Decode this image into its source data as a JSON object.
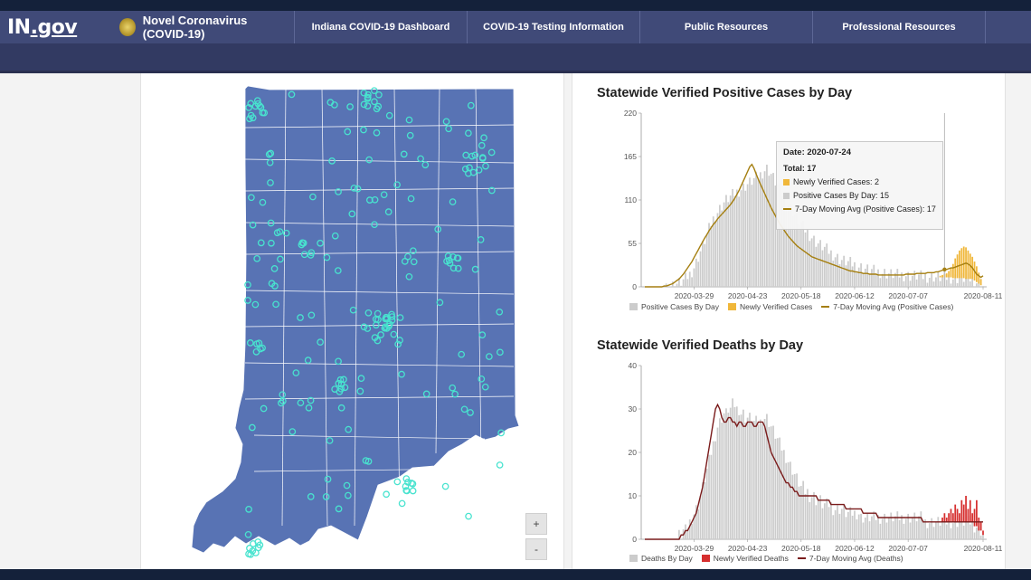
{
  "header": {
    "logo_main": "IN",
    "logo_suffix": ".gov",
    "site_title": "Novel Coronavirus (COVID-19)",
    "nav": [
      "Indiana COVID-19 Dashboard",
      "COVID-19 Testing Information",
      "Public Resources",
      "Professional Resources"
    ]
  },
  "map": {
    "zoom_in": "+",
    "zoom_out": "-",
    "fill_color": "#5873b4",
    "marker_color": "#48e3cf"
  },
  "charts": {
    "cases": {
      "title": "Statewide Verified Positive Cases by Day",
      "tooltip": {
        "date": "Date: 2020-07-24",
        "total": "Total: 17",
        "new": "Newly Verified Cases: 2",
        "positive": "Positive Cases By Day: 15",
        "avg": "7-Day Moving Avg (Positive Cases): 17"
      },
      "legend": [
        "Positive Cases By Day",
        "Newly Verified Cases",
        "7-Day Moving Avg (Positive Cases)"
      ]
    },
    "deaths": {
      "title": "Statewide Verified Deaths by Day",
      "legend": [
        "Deaths By Day",
        "Newly Verified Deaths",
        "7-Day Moving Avg (Deaths)"
      ]
    }
  },
  "chart_data": [
    {
      "type": "bar",
      "title": "Statewide Verified Positive Cases by Day",
      "x_ticks": [
        "2020-03-29",
        "2020-04-23",
        "2020-05-18",
        "2020-06-12",
        "2020-07-07",
        "2020-08-11"
      ],
      "y_ticks": [
        "0",
        "55",
        "110",
        "165",
        "220"
      ],
      "ylim": [
        0,
        220
      ],
      "start_date": "2020-03-06",
      "end_date": "2020-08-14",
      "series": [
        {
          "name": "Positive Cases By Day",
          "color": "#cccccc",
          "values": [
            0,
            0,
            0,
            0,
            0,
            0,
            0,
            0,
            0,
            0,
            1,
            1,
            2,
            2,
            3,
            4,
            5,
            6,
            8,
            10,
            13,
            16,
            20,
            25,
            31,
            38,
            45,
            52,
            59,
            66,
            73,
            80,
            86,
            91,
            95,
            99,
            103,
            107,
            110,
            112,
            114,
            116,
            118,
            120,
            122,
            124,
            126,
            128,
            130,
            132,
            134,
            136,
            138,
            140,
            142,
            145,
            148,
            150,
            147,
            143,
            138,
            133,
            128,
            123,
            118,
            113,
            108,
            104,
            100,
            96,
            92,
            88,
            84,
            80,
            76,
            72,
            69,
            66,
            63,
            60,
            57,
            55,
            53,
            51,
            49,
            47,
            45,
            43,
            41,
            39,
            37,
            35,
            34,
            33,
            32,
            31,
            30,
            29,
            28,
            27,
            26,
            25,
            24,
            23,
            22,
            21,
            21,
            20,
            20,
            19,
            19,
            18,
            18,
            17,
            17,
            16,
            16,
            16,
            15,
            15,
            15,
            15,
            15,
            14,
            14,
            14,
            14,
            14,
            14,
            13,
            13,
            13,
            13,
            13,
            13,
            13,
            12,
            12,
            12,
            12,
            12,
            12,
            12,
            12,
            11,
            11,
            11,
            11,
            11,
            11,
            10,
            10,
            10,
            10,
            8,
            6,
            4,
            2,
            1
          ]
        },
        {
          "name": "Newly Verified Cases",
          "color": "#f0b73a",
          "values": [
            0,
            0,
            0,
            0,
            0,
            0,
            0,
            0,
            0,
            0,
            0,
            0,
            0,
            0,
            0,
            0,
            0,
            0,
            0,
            0,
            0,
            0,
            0,
            0,
            0,
            0,
            0,
            0,
            0,
            0,
            0,
            0,
            0,
            0,
            0,
            0,
            0,
            0,
            0,
            0,
            0,
            0,
            0,
            0,
            0,
            0,
            0,
            0,
            0,
            0,
            0,
            0,
            0,
            0,
            0,
            0,
            0,
            0,
            0,
            0,
            0,
            0,
            0,
            0,
            0,
            0,
            0,
            0,
            0,
            0,
            0,
            0,
            0,
            0,
            0,
            0,
            0,
            0,
            0,
            0,
            0,
            0,
            0,
            0,
            0,
            0,
            0,
            0,
            0,
            0,
            0,
            0,
            0,
            0,
            0,
            0,
            0,
            0,
            0,
            0,
            0,
            0,
            0,
            0,
            0,
            0,
            0,
            0,
            0,
            0,
            0,
            0,
            0,
            0,
            0,
            0,
            0,
            0,
            0,
            0,
            0,
            0,
            0,
            0,
            0,
            0,
            0,
            0,
            0,
            0,
            0,
            0,
            0,
            0,
            0,
            0,
            0,
            0,
            2,
            3,
            4,
            5,
            8,
            12,
            18,
            25,
            30,
            35,
            38,
            40,
            40,
            36,
            32,
            28,
            24,
            20,
            14,
            8
          ]
        },
        {
          "name": "7-Day Moving Avg (Positive Cases)",
          "color": "#a57f10",
          "values": [
            0,
            0,
            0,
            0,
            0,
            0,
            0,
            0,
            0,
            1,
            1,
            2,
            3,
            4,
            6,
            8,
            10,
            13,
            16,
            20,
            24,
            28,
            32,
            37,
            42,
            47,
            52,
            57,
            62,
            66,
            71,
            75,
            79,
            82,
            86,
            89,
            92,
            95,
            98,
            101,
            104,
            108,
            112,
            117,
            122,
            128,
            134,
            140,
            146,
            152,
            155,
            150,
            143,
            136,
            130,
            124,
            118,
            112,
            106,
            100,
            95,
            90,
            85,
            80,
            76,
            72,
            68,
            64,
            61,
            58,
            55,
            52,
            50,
            48,
            46,
            44,
            42,
            40,
            38,
            37,
            36,
            35,
            34,
            33,
            32,
            31,
            30,
            29,
            28,
            27,
            26,
            25,
            24,
            23,
            22,
            21,
            20,
            20,
            19,
            19,
            18,
            18,
            17,
            17,
            17,
            16,
            16,
            16,
            16,
            15,
            15,
            15,
            15,
            15,
            15,
            15,
            15,
            15,
            15,
            15,
            15,
            15,
            16,
            16,
            16,
            16,
            16,
            17,
            17,
            17,
            17,
            17,
            18,
            18,
            18,
            18,
            19,
            19,
            20,
            21,
            22,
            22,
            23,
            24,
            24,
            25,
            26,
            27,
            28,
            29,
            30,
            29,
            27,
            24,
            20,
            16,
            14,
            12,
            14
          ]
        }
      ]
    },
    {
      "type": "bar",
      "title": "Statewide Verified Deaths by Day",
      "x_ticks": [
        "2020-03-29",
        "2020-04-23",
        "2020-05-18",
        "2020-06-12",
        "2020-07-07",
        "2020-08-11"
      ],
      "y_ticks": [
        "0",
        "10",
        "20",
        "30",
        "40"
      ],
      "ylim": [
        0,
        40
      ],
      "start_date": "2020-03-06",
      "end_date": "2020-08-14",
      "series": [
        {
          "name": "Deaths By Day",
          "color": "#cccccc",
          "values": [
            0,
            0,
            0,
            0,
            0,
            0,
            0,
            0,
            0,
            0,
            0,
            0,
            0,
            0,
            0,
            0,
            1,
            1,
            2,
            2,
            3,
            4,
            5,
            6,
            7,
            8,
            10,
            12,
            14,
            16,
            18,
            20,
            22,
            24,
            26,
            27,
            28,
            29,
            29,
            30,
            30,
            31,
            31,
            30,
            30,
            29,
            29,
            28,
            28,
            28,
            28,
            27,
            27,
            27,
            27,
            28,
            28,
            28,
            27,
            26,
            25,
            24,
            23,
            22,
            21,
            20,
            19,
            18,
            17,
            16,
            15,
            14,
            13,
            12,
            12,
            11,
            11,
            10,
            10,
            10,
            9,
            9,
            9,
            8,
            8,
            8,
            8,
            8,
            7,
            7,
            7,
            7,
            7,
            7,
            6,
            6,
            6,
            6,
            6,
            6,
            6,
            5,
            5,
            5,
            5,
            5,
            5,
            5,
            5,
            5,
            5,
            5,
            5,
            5,
            5,
            5,
            5,
            5,
            5,
            5,
            5,
            5,
            5,
            5,
            5,
            5,
            5,
            5,
            5,
            5,
            5,
            4,
            4,
            4,
            4,
            4,
            4,
            4,
            4,
            4,
            4,
            4,
            4,
            4,
            4,
            4,
            4,
            4,
            4,
            4,
            4,
            4,
            4,
            4,
            3,
            3,
            2,
            2,
            1
          ]
        },
        {
          "name": "Newly Verified Deaths",
          "color": "#d62f2f",
          "values": [
            0,
            0,
            0,
            0,
            0,
            0,
            0,
            0,
            0,
            0,
            0,
            0,
            0,
            0,
            0,
            0,
            0,
            0,
            0,
            0,
            0,
            0,
            0,
            0,
            0,
            0,
            0,
            0,
            0,
            0,
            0,
            0,
            0,
            0,
            0,
            0,
            0,
            0,
            0,
            0,
            0,
            0,
            0,
            0,
            0,
            0,
            0,
            0,
            0,
            0,
            0,
            0,
            0,
            0,
            0,
            0,
            0,
            0,
            0,
            0,
            0,
            0,
            0,
            0,
            0,
            0,
            0,
            0,
            0,
            0,
            0,
            0,
            0,
            0,
            0,
            0,
            0,
            0,
            0,
            0,
            0,
            0,
            0,
            0,
            0,
            0,
            0,
            0,
            0,
            0,
            0,
            0,
            0,
            0,
            0,
            0,
            0,
            0,
            0,
            0,
            0,
            0,
            0,
            0,
            0,
            0,
            0,
            0,
            0,
            0,
            0,
            0,
            0,
            0,
            0,
            0,
            0,
            0,
            0,
            0,
            0,
            0,
            0,
            0,
            0,
            0,
            0,
            0,
            0,
            0,
            0,
            0,
            0,
            0,
            0,
            0,
            0,
            0,
            0,
            1,
            2,
            1,
            2,
            3,
            2,
            4,
            3,
            2,
            5,
            4,
            6,
            3,
            5,
            2,
            4,
            6,
            3,
            2,
            1
          ]
        },
        {
          "name": "7-Day Moving Avg (Deaths)",
          "color": "#7a1b1b",
          "values": [
            0,
            0,
            0,
            0,
            0,
            0,
            0,
            0,
            0,
            0,
            0,
            0,
            0,
            0,
            0,
            0,
            0,
            1,
            1,
            2,
            2,
            3,
            4,
            5,
            6,
            8,
            10,
            12,
            15,
            18,
            21,
            24,
            27,
            30,
            31,
            30,
            28,
            27,
            27,
            28,
            28,
            27,
            27,
            26,
            27,
            27,
            26,
            26,
            27,
            27,
            27,
            26,
            26,
            27,
            27,
            27,
            26,
            24,
            22,
            20,
            19,
            18,
            17,
            16,
            15,
            14,
            13,
            13,
            12,
            12,
            11,
            11,
            10,
            10,
            10,
            10,
            10,
            10,
            10,
            10,
            10,
            9,
            9,
            9,
            9,
            9,
            9,
            8,
            8,
            8,
            8,
            8,
            8,
            8,
            7,
            7,
            7,
            7,
            7,
            7,
            7,
            7,
            6,
            6,
            6,
            6,
            6,
            6,
            6,
            5,
            5,
            5,
            5,
            5,
            5,
            5,
            5,
            5,
            5,
            5,
            5,
            5,
            5,
            5,
            5,
            5,
            5,
            5,
            5,
            5,
            4,
            4,
            4,
            4,
            4,
            4,
            4,
            4,
            4,
            4,
            4,
            4,
            4,
            4,
            4,
            4,
            4,
            4,
            4,
            4,
            4,
            4,
            4,
            4,
            4,
            4,
            4,
            4,
            4
          ]
        }
      ]
    }
  ]
}
